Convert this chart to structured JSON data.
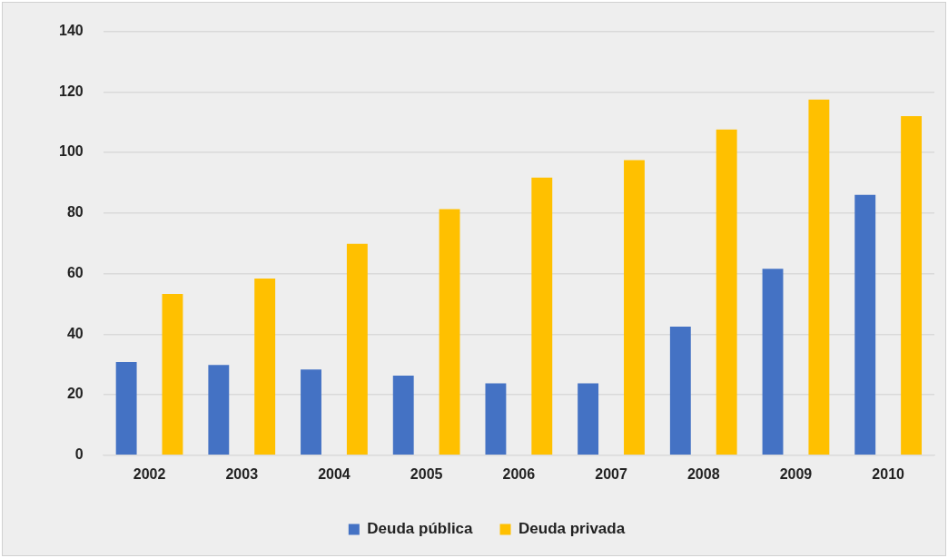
{
  "chart_data": {
    "type": "bar",
    "categories": [
      "2002",
      "2003",
      "2004",
      "2005",
      "2006",
      "2007",
      "2008",
      "2009",
      "2010"
    ],
    "series": [
      {
        "name": "Deuda pública",
        "color": "#4472c4",
        "values": [
          30.8,
          29.8,
          28.3,
          26.3,
          23.8,
          23.8,
          42.5,
          61.6,
          86
        ]
      },
      {
        "name": "Deuda privada",
        "color": "#ffc000",
        "values": [
          53.3,
          58.4,
          69.8,
          81.3,
          91.7,
          97.5,
          107.6,
          117.5,
          112
        ]
      }
    ],
    "ylim": [
      0,
      140
    ],
    "yticks": [
      0,
      20,
      40,
      60,
      80,
      100,
      120,
      140
    ],
    "grid": "y",
    "legend": "bottom"
  }
}
